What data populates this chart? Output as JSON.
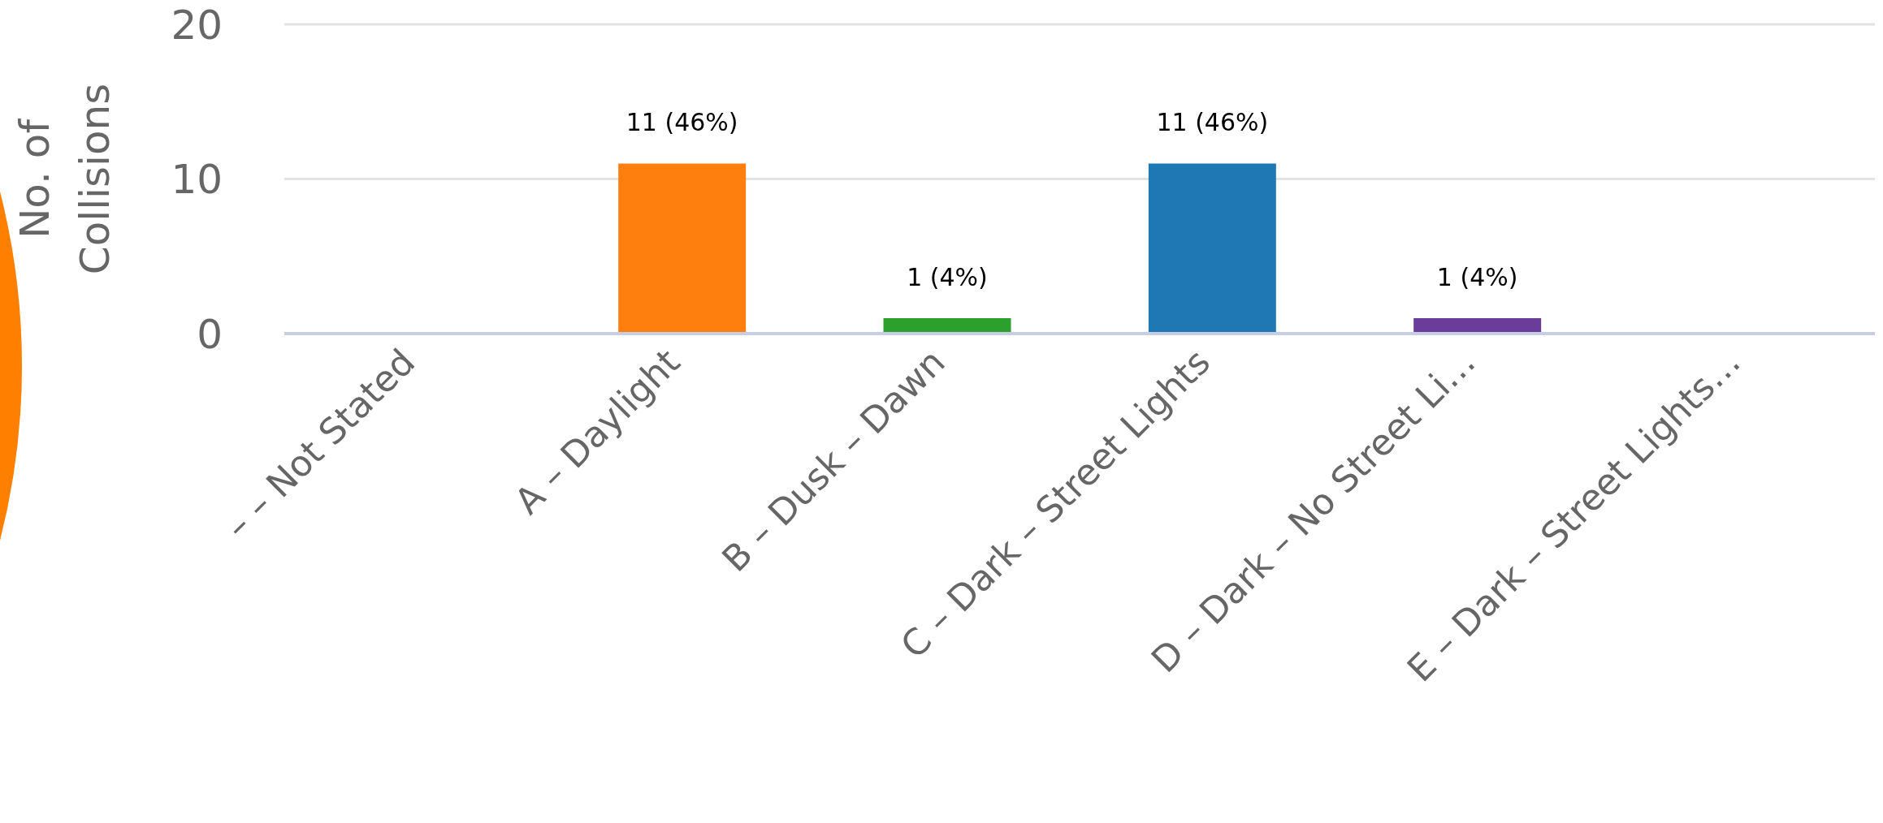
{
  "chart_data": {
    "type": "bar",
    "ylabel": "No. of Collisions",
    "categories": [
      "– – Not Stated",
      "A – Daylight",
      "B – Dusk – Dawn",
      "C – Dark – Street Lights",
      "D – Dark – No Street Li…",
      "E – Dark – Street Lights…"
    ],
    "values": [
      0,
      11,
      1,
      11,
      1,
      0
    ],
    "colors": [
      "#d62728",
      "#ff7f0e",
      "#2ca02c",
      "#1f77b4",
      "#6a3d9a",
      "#8c564b"
    ],
    "value_labels": [
      null,
      "11 (46%)",
      "1 (4%)",
      "11 (46%)",
      "1 (4%)",
      null
    ],
    "ylim": [
      0,
      20
    ],
    "yticks": [
      0,
      10,
      20
    ],
    "grid": "y",
    "legend": false
  }
}
